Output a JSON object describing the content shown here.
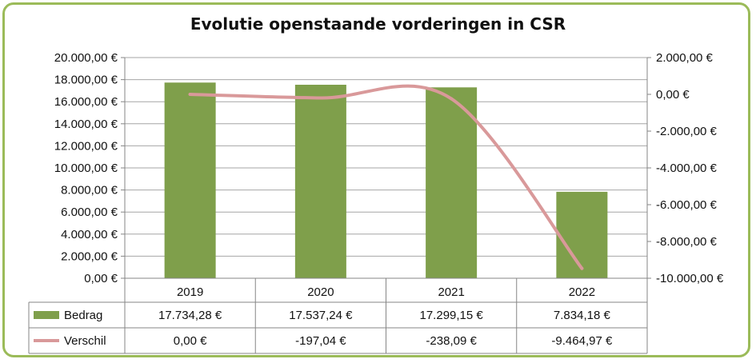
{
  "chart_data": {
    "type": "bar",
    "title": "Evolutie openstaande vorderingen in CSR",
    "categories": [
      "2019",
      "2020",
      "2021",
      "2022"
    ],
    "series": [
      {
        "name": "Bedrag",
        "type": "bar",
        "axis": "left",
        "color": "#7f9f4b",
        "values": [
          17734.28,
          17537.24,
          17299.15,
          7834.18
        ],
        "labels": [
          "17.734,28 €",
          "17.537,24 €",
          "17.299,15 €",
          "7.834,18 €"
        ]
      },
      {
        "name": "Verschil",
        "type": "line",
        "axis": "right",
        "color": "#d9999a",
        "values": [
          0.0,
          -197.04,
          -238.09,
          -9464.97
        ],
        "labels": [
          "0,00 €",
          "-197,04 €",
          "-238,09 €",
          "-9.464,97 €"
        ]
      }
    ],
    "y_left": {
      "min": 0,
      "max": 20000,
      "ticks": [
        "0,00 €",
        "2.000,00 €",
        "4.000,00 €",
        "6.000,00 €",
        "8.000,00 €",
        "10.000,00 €",
        "12.000,00 €",
        "14.000,00 €",
        "16.000,00 €",
        "18.000,00 €",
        "20.000,00 €"
      ]
    },
    "y_right": {
      "min": -10000,
      "max": 2000,
      "ticks": [
        "-10.000,00 €",
        "-8.000,00 €",
        "-6.000,00 €",
        "-4.000,00 €",
        "-2.000,00 €",
        "0,00 €",
        "2.000,00 €"
      ]
    },
    "grid": true,
    "legend": "data-table"
  }
}
